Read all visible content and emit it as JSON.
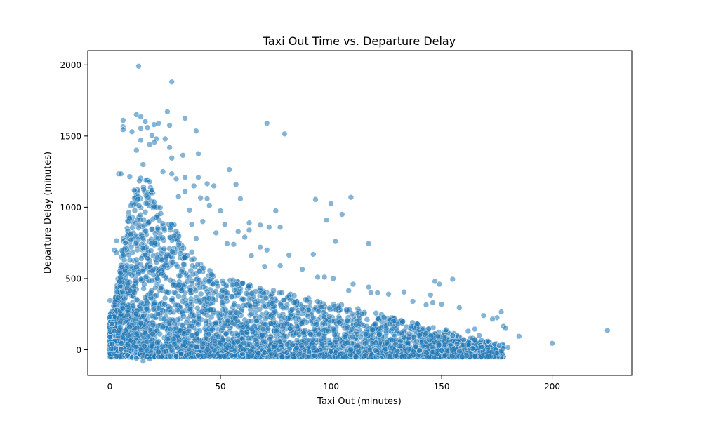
{
  "chart_data": {
    "type": "scatter",
    "title": "Taxi Out Time vs. Departure Delay",
    "xlabel": "Taxi Out (minutes)",
    "ylabel": "Departure Delay (minutes)",
    "xlim": [
      -10,
      236
    ],
    "ylim": [
      -180,
      2100
    ],
    "x_ticks": [
      0,
      50,
      100,
      150,
      200
    ],
    "y_ticks": [
      0,
      500,
      1000,
      1500,
      2000
    ],
    "x_tick_labels": [
      "0",
      "50",
      "100",
      "150",
      "200"
    ],
    "y_tick_labels": [
      "0",
      "500",
      "1000",
      "1500",
      "2000"
    ],
    "grid": false,
    "legend": "none",
    "marker_color": "#1f77b4",
    "marker_edge_color": "#ffffff",
    "marker_alpha": 0.55,
    "points": [
      [
        13,
        1990
      ],
      [
        28,
        1880
      ],
      [
        26,
        1670
      ],
      [
        12,
        1650
      ],
      [
        14,
        1635
      ],
      [
        34,
        1625
      ],
      [
        6,
        1610
      ],
      [
        16,
        1600
      ],
      [
        71,
        1590
      ],
      [
        22,
        1590
      ],
      [
        20,
        1580
      ],
      [
        27,
        1575
      ],
      [
        6,
        1565
      ],
      [
        17,
        1560
      ],
      [
        14,
        1555
      ],
      [
        6,
        1545
      ],
      [
        10,
        1530
      ],
      [
        39,
        1535
      ],
      [
        79,
        1515
      ],
      [
        19,
        1505
      ],
      [
        25,
        1480
      ],
      [
        21,
        1480
      ],
      [
        14,
        1470
      ],
      [
        20,
        1455
      ],
      [
        18,
        1440
      ],
      [
        27,
        1420
      ],
      [
        12,
        1400
      ],
      [
        40,
        1375
      ],
      [
        33,
        1365
      ],
      [
        28,
        1345
      ],
      [
        4,
        1235
      ],
      [
        28,
        1235
      ],
      [
        54,
        1265
      ],
      [
        40,
        1210
      ],
      [
        34,
        1210
      ],
      [
        44,
        1165
      ],
      [
        47,
        1150
      ],
      [
        57,
        1160
      ],
      [
        38,
        1150
      ],
      [
        34,
        1110
      ],
      [
        31,
        1075
      ],
      [
        41,
        1065
      ],
      [
        44,
        1060
      ],
      [
        59,
        1060
      ],
      [
        109,
        1070
      ],
      [
        93,
        1055
      ],
      [
        100,
        1025
      ],
      [
        105,
        950
      ],
      [
        75,
        975
      ],
      [
        98,
        910
      ],
      [
        63,
        890
      ],
      [
        68,
        875
      ],
      [
        72,
        860
      ],
      [
        77,
        860
      ],
      [
        3,
        765
      ],
      [
        6,
        760
      ],
      [
        7,
        750
      ],
      [
        102,
        760
      ],
      [
        117,
        745
      ],
      [
        53,
        745
      ],
      [
        56,
        740
      ],
      [
        68,
        720
      ],
      [
        71,
        700
      ],
      [
        81,
        665
      ],
      [
        92,
        670
      ],
      [
        64,
        660
      ],
      [
        2,
        700
      ],
      [
        3,
        680
      ],
      [
        87,
        565
      ],
      [
        77,
        590
      ],
      [
        70,
        585
      ],
      [
        94,
        510
      ],
      [
        97,
        510
      ],
      [
        101,
        500
      ],
      [
        110,
        460
      ],
      [
        117,
        440
      ],
      [
        108,
        415
      ],
      [
        118,
        400
      ],
      [
        121,
        400
      ],
      [
        155,
        495
      ],
      [
        149,
        460
      ],
      [
        147,
        480
      ],
      [
        145,
        385
      ],
      [
        133,
        405
      ],
      [
        126,
        390
      ],
      [
        137,
        340
      ],
      [
        143,
        315
      ],
      [
        146,
        330
      ],
      [
        150,
        320
      ],
      [
        158,
        295
      ],
      [
        169,
        240
      ],
      [
        177,
        265
      ],
      [
        175,
        225
      ],
      [
        173,
        215
      ],
      [
        178,
        165
      ],
      [
        179,
        150
      ],
      [
        185,
        95
      ],
      [
        225,
        135
      ],
      [
        200,
        45
      ],
      [
        162,
        130
      ],
      [
        165,
        145
      ],
      [
        167,
        100
      ],
      [
        171,
        60
      ],
      [
        174,
        40
      ],
      [
        176,
        30
      ],
      [
        180,
        15
      ],
      [
        168,
        20
      ],
      [
        160,
        70
      ],
      [
        155,
        100
      ],
      [
        152,
        140
      ],
      [
        157,
        40
      ],
      [
        164,
        10
      ],
      [
        0,
        345
      ],
      [
        0,
        230
      ],
      [
        1,
        180
      ],
      [
        2,
        130
      ],
      [
        0,
        90
      ],
      [
        1,
        40
      ],
      [
        2,
        -30
      ],
      [
        3,
        -45
      ],
      [
        5,
        5
      ],
      [
        8,
        -40
      ],
      [
        10,
        -55
      ],
      [
        12,
        -60
      ],
      [
        15,
        -80
      ],
      [
        18,
        -65
      ],
      [
        22,
        -50
      ],
      [
        30,
        -45
      ],
      [
        40,
        -40
      ],
      [
        50,
        -45
      ],
      [
        55,
        -40
      ],
      [
        60,
        -30
      ],
      [
        70,
        -20
      ],
      [
        80,
        -20
      ],
      [
        90,
        -15
      ],
      [
        100,
        -10
      ],
      [
        120,
        -5
      ],
      [
        130,
        -10
      ],
      [
        140,
        -5
      ],
      [
        150,
        -5
      ],
      [
        5,
        1235
      ],
      [
        9,
        1215
      ],
      [
        11,
        1120
      ],
      [
        15,
        1300
      ],
      [
        24,
        1250
      ],
      [
        18,
        1180
      ],
      [
        19,
        1120
      ],
      [
        30,
        1200
      ],
      [
        36,
        980
      ],
      [
        45,
        1010
      ],
      [
        50,
        975
      ],
      [
        42,
        900
      ],
      [
        37,
        880
      ],
      [
        52,
        880
      ],
      [
        58,
        830
      ],
      [
        63,
        840
      ],
      [
        48,
        820
      ],
      [
        39,
        780
      ],
      [
        61,
        790
      ]
    ],
    "dense_band": {
      "description": "points concentrated at taxi out 0-180 and delay roughly -60 to 1000, densest at taxi out 5-40 and delay 0-500",
      "envelope": [
        [
          1,
          260
        ],
        [
          4,
          550
        ],
        [
          6,
          780
        ],
        [
          8,
          950
        ],
        [
          10,
          1030
        ],
        [
          12,
          1180
        ],
        [
          14,
          1230
        ],
        [
          16,
          1250
        ],
        [
          18,
          1160
        ],
        [
          20,
          1090
        ],
        [
          22,
          1010
        ],
        [
          25,
          960
        ],
        [
          28,
          900
        ],
        [
          31,
          840
        ],
        [
          35,
          720
        ],
        [
          40,
          640
        ],
        [
          45,
          560
        ],
        [
          50,
          520
        ],
        [
          60,
          470
        ],
        [
          70,
          430
        ],
        [
          80,
          400
        ],
        [
          90,
          360
        ],
        [
          100,
          330
        ],
        [
          110,
          300
        ],
        [
          120,
          260
        ],
        [
          130,
          220
        ],
        [
          140,
          180
        ],
        [
          150,
          140
        ],
        [
          160,
          100
        ],
        [
          170,
          60
        ],
        [
          178,
          40
        ]
      ],
      "lower": -50
    }
  }
}
